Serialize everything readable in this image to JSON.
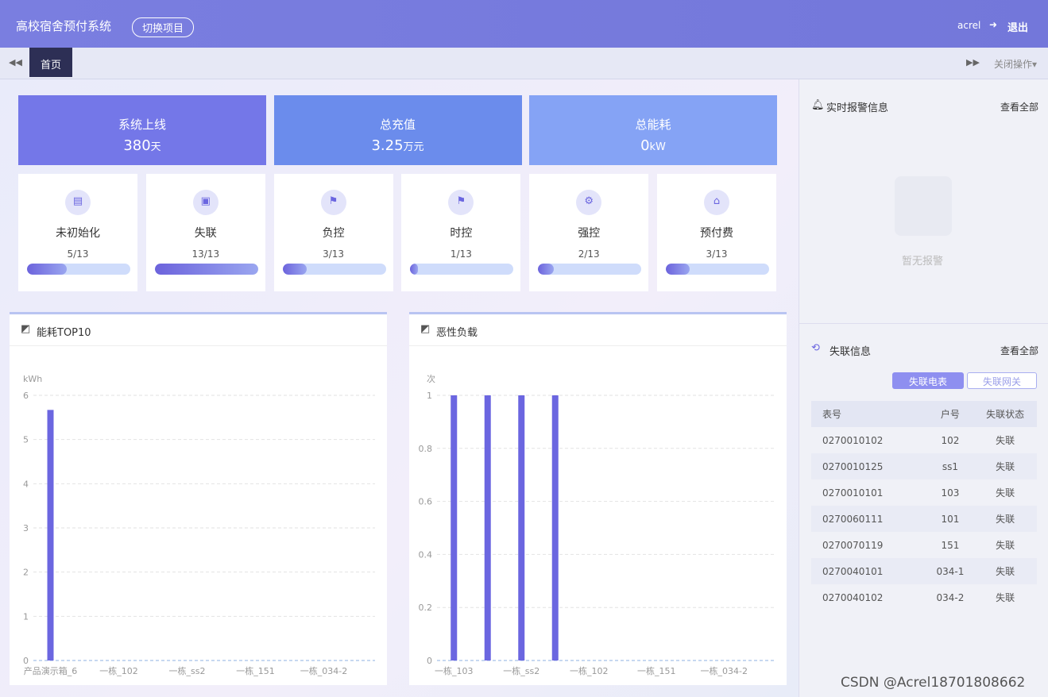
{
  "header": {
    "title": "高校宿舍预付系统",
    "switch": "切换项目",
    "user": "acrel",
    "logout": "退出"
  },
  "tabs": {
    "home": "首页",
    "close": "关闭操作"
  },
  "stats": [
    {
      "label": "系统上线",
      "value": "380",
      "unit": "天"
    },
    {
      "label": "总充值",
      "value": "3.25",
      "unit": "万元"
    },
    {
      "label": "总能耗",
      "value": "0",
      "unit": "kW"
    }
  ],
  "status": [
    {
      "label": "未初始化",
      "count": 5,
      "total": 13,
      "text": "5/13"
    },
    {
      "label": "失联",
      "count": 13,
      "total": 13,
      "text": "13/13"
    },
    {
      "label": "负控",
      "count": 3,
      "total": 13,
      "text": "3/13"
    },
    {
      "label": "时控",
      "count": 1,
      "total": 13,
      "text": "1/13"
    },
    {
      "label": "强控",
      "count": 2,
      "total": 13,
      "text": "2/13"
    },
    {
      "label": "预付费",
      "count": 3,
      "total": 13,
      "text": "3/13"
    }
  ],
  "alarm": {
    "title": "实时报警信息",
    "view_all": "查看全部",
    "empty": "暂无报警"
  },
  "offline": {
    "title": "失联信息",
    "view_all": "查看全部",
    "tab_meter": "失联电表",
    "tab_gateway": "失联网关",
    "columns": [
      "表号",
      "户号",
      "失联状态"
    ],
    "rows": [
      [
        "0270010102",
        "102",
        "失联"
      ],
      [
        "0270010125",
        "ss1",
        "失联"
      ],
      [
        "0270010101",
        "103",
        "失联"
      ],
      [
        "0270060111",
        "101",
        "失联"
      ],
      [
        "0270070119",
        "151",
        "失联"
      ],
      [
        "0270040101",
        "034-1",
        "失联"
      ],
      [
        "0270040102",
        "034-2",
        "失联"
      ]
    ]
  },
  "watermark": "CSDN @Acrel18701808662",
  "chart_data": [
    {
      "type": "bar",
      "title": "能耗TOP10",
      "y_label": "kWh",
      "color": "#6b66e0",
      "categories": [
        "产品演示箱_6",
        null,
        "一栋_102",
        null,
        "一栋_ss2",
        null,
        "一栋_151",
        null,
        "一栋_034-2",
        null
      ],
      "values": [
        5.67,
        0,
        0,
        0,
        0,
        0,
        0,
        0,
        0,
        0
      ],
      "ylim": [
        0,
        6
      ],
      "yticks": [
        0,
        1,
        2,
        3,
        4,
        5,
        6
      ],
      "grid": true
    },
    {
      "type": "bar",
      "title": "恶性负载",
      "y_label": "次",
      "color": "#6b66e0",
      "categories": [
        "一栋_103",
        null,
        "一栋_ss2",
        null,
        "一栋_102",
        null,
        "一栋_151",
        null,
        "一栋_034-2",
        null
      ],
      "values": [
        1,
        1,
        1,
        1,
        0,
        0,
        0,
        0,
        0,
        0
      ],
      "ylim": [
        0,
        1
      ],
      "yticks": [
        0,
        0.2,
        0.4,
        0.6,
        0.8,
        1
      ],
      "grid": true
    }
  ]
}
